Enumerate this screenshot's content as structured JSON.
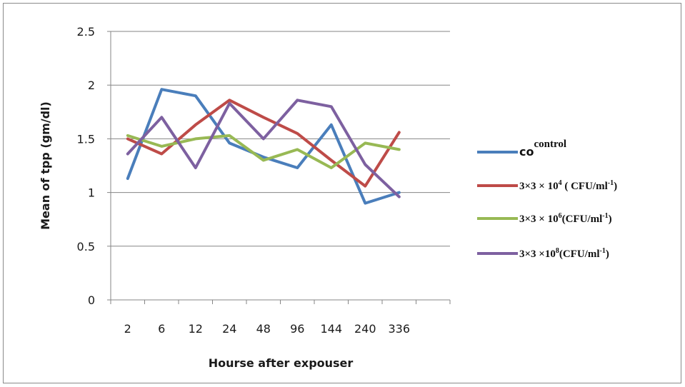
{
  "chart_data": {
    "type": "line",
    "title": "",
    "xlabel": "Hourse after expouser",
    "ylabel": "Mean of tpp (gm/dl)",
    "ylim": [
      0,
      2.5
    ],
    "yticks": [
      "0",
      "0.5",
      "1",
      "1.5",
      "2",
      "2.5"
    ],
    "categories": [
      "2",
      "6",
      "12",
      "24",
      "48",
      "96",
      "144",
      "240",
      "336"
    ],
    "grid": true,
    "legend_position": "right",
    "series": [
      {
        "name": "co",
        "legend_base": "co",
        "legend_sup": "control",
        "legend_rest": "",
        "legend_sup2": "",
        "legend_end": "",
        "color": "#4a7ebb",
        "values": [
          1.13,
          1.96,
          1.9,
          1.46,
          1.33,
          1.23,
          1.63,
          0.9,
          1.0
        ]
      },
      {
        "name": "3×3 × 10^4 ( CFU/ml^-1)",
        "legend_base": "3×3 × 10",
        "legend_sup": "4",
        "legend_rest": " ( CFU/ml",
        "legend_sup2": "-1",
        "legend_end": ")",
        "color": "#be4b48",
        "values": [
          1.5,
          1.36,
          1.63,
          1.86,
          1.7,
          1.55,
          1.3,
          1.06,
          1.56
        ]
      },
      {
        "name": "3×3 × 10^6(CFU/ml^-1)",
        "legend_base": "3×3 × 10",
        "legend_sup": "6",
        "legend_rest": "(CFU/ml",
        "legend_sup2": "-1",
        "legend_end": ")",
        "color": "#98b954",
        "values": [
          1.53,
          1.43,
          1.5,
          1.53,
          1.3,
          1.4,
          1.23,
          1.46,
          1.4
        ]
      },
      {
        "name": "3×3 ×10^8(CFU/ml^-1)",
        "legend_base": "3×3 ×10",
        "legend_sup": "8",
        "legend_rest": "(CFU/ml",
        "legend_sup2": "-1",
        "legend_end": ")",
        "color": "#7d60a0",
        "values": [
          1.36,
          1.7,
          1.23,
          1.83,
          1.5,
          1.86,
          1.8,
          1.26,
          0.96
        ]
      }
    ]
  }
}
